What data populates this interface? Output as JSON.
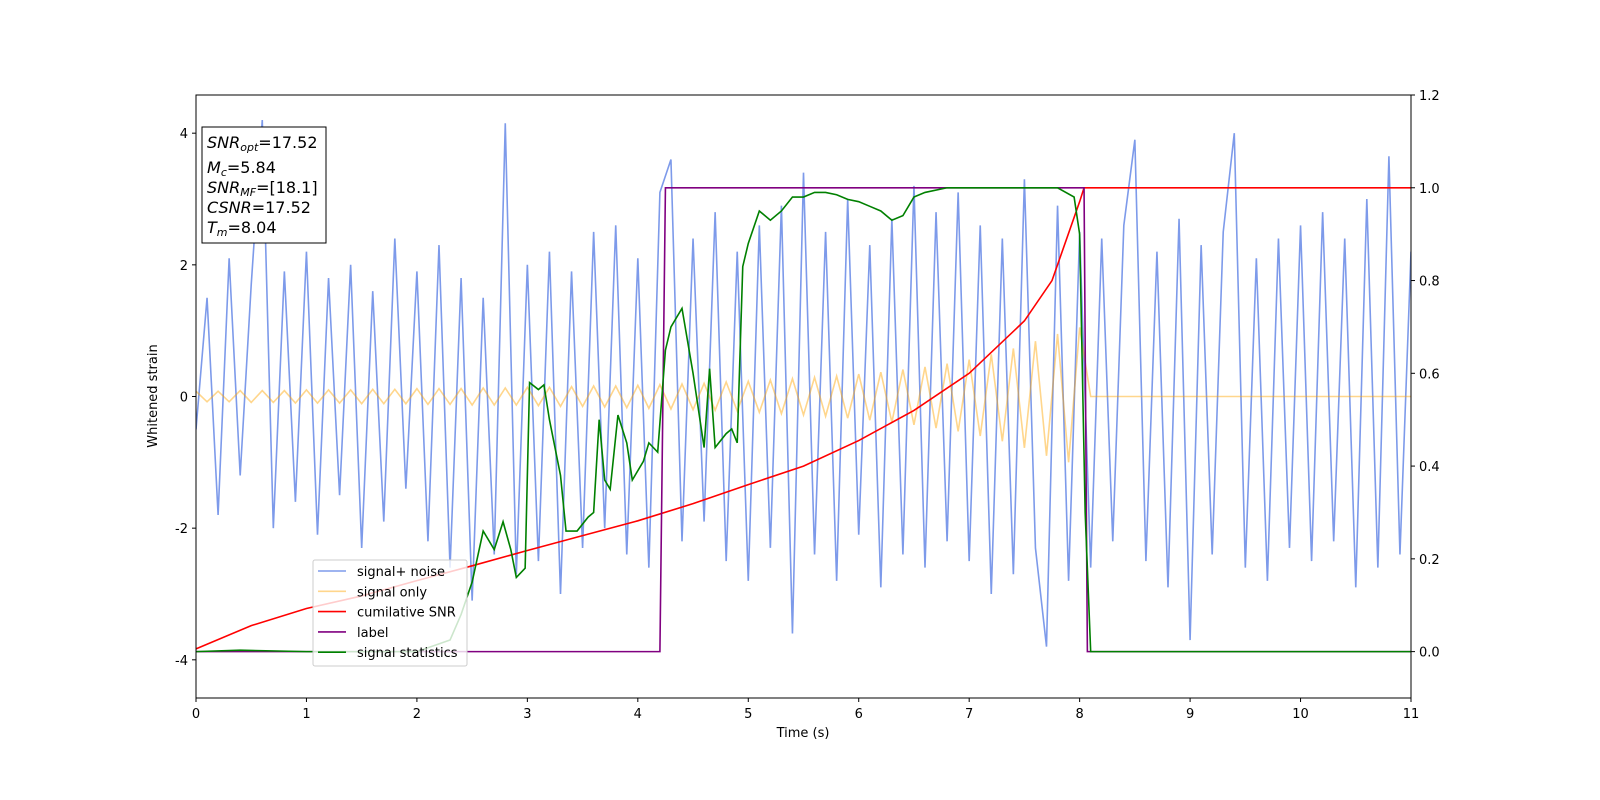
{
  "chart_data": {
    "type": "line",
    "xlabel": "Time (s)",
    "ylabel": "Whitened strain",
    "xlim": [
      0,
      11
    ],
    "ylim": [
      -4.58,
      4.58
    ],
    "y2lim": [
      -0.1,
      1.2
    ],
    "xticks": [
      0,
      1,
      2,
      3,
      4,
      5,
      6,
      7,
      8,
      9,
      10,
      11
    ],
    "yticks": [
      -4,
      -2,
      0,
      2,
      4
    ],
    "y2ticks": [
      {
        "value": 0,
        "label": "0.0"
      },
      0.2,
      0.4,
      0.6,
      0.8,
      {
        "value": 1,
        "label": "1.0"
      },
      1.2
    ],
    "x": [
      0,
      0.1,
      0.2,
      0.3,
      0.4,
      0.5,
      0.6,
      0.7,
      0.8,
      0.9,
      1,
      1.1,
      1.2,
      1.3,
      1.4,
      1.5,
      1.6,
      1.7,
      1.8,
      1.9,
      2,
      2.1,
      2.2,
      2.3,
      2.4,
      2.5,
      2.6,
      2.7,
      2.8,
      2.9,
      3,
      3.1,
      3.2,
      3.3,
      3.4,
      3.5,
      3.6,
      3.7,
      3.8,
      3.9,
      4,
      4.1,
      4.2,
      4.3,
      4.4,
      4.5,
      4.6,
      4.7,
      4.8,
      4.9,
      5,
      5.1,
      5.2,
      5.3,
      5.4,
      5.5,
      5.6,
      5.7,
      5.8,
      5.9,
      6,
      6.1,
      6.2,
      6.3,
      6.4,
      6.5,
      6.6,
      6.7,
      6.8,
      6.9,
      7,
      7.1,
      7.2,
      7.3,
      7.4,
      7.5,
      7.6,
      7.7,
      7.8,
      7.9,
      8,
      8.1,
      8.2,
      8.3,
      8.4,
      8.5,
      8.6,
      8.7,
      8.8,
      8.9,
      9,
      9.1,
      9.2,
      9.3,
      9.4,
      9.5,
      9.6,
      9.7,
      9.8,
      9.9,
      10,
      10.1,
      10.2,
      10.3,
      10.4,
      10.5,
      10.6,
      10.7,
      10.8,
      10.9,
      11
    ],
    "series": [
      {
        "name": "signal+ noise",
        "color": "#6f8fe8",
        "opacity": 0.9,
        "values": [
          -0.5,
          1.5,
          -1.8,
          2.1,
          -1.2,
          1.7,
          4.2,
          -2.0,
          1.9,
          -1.6,
          2.2,
          -2.1,
          1.8,
          -1.5,
          2.0,
          -2.3,
          1.6,
          -1.9,
          2.4,
          -1.4,
          1.9,
          -2.2,
          2.3,
          -2.6,
          1.8,
          -3.1,
          1.5,
          -2.4,
          4.15,
          -2.7,
          2.0,
          -2.5,
          2.2,
          -3.0,
          1.9,
          -2.3,
          2.5,
          -2.0,
          2.6,
          -2.4,
          2.1,
          -2.6,
          3.1,
          3.6,
          -2.2,
          2.4,
          -1.9,
          2.8,
          -2.5,
          2.2,
          -2.8,
          2.6,
          -2.3,
          2.9,
          -3.6,
          3.4,
          -2.4,
          2.5,
          -2.8,
          3.0,
          -2.1,
          2.3,
          -2.9,
          2.7,
          -2.4,
          3.2,
          -2.6,
          2.8,
          -2.2,
          3.1,
          -2.5,
          2.6,
          -3.0,
          2.4,
          -2.7,
          3.3,
          -2.3,
          -3.8,
          2.9,
          -2.8,
          2.5,
          -2.6,
          2.4,
          -2.2,
          2.6,
          3.9,
          -2.5,
          2.2,
          -2.9,
          2.7,
          -3.7,
          2.3,
          -2.4,
          2.5,
          4.0,
          -2.6,
          2.1,
          -2.8,
          2.4,
          -2.3,
          2.6,
          -2.5,
          2.8,
          -2.2,
          2.4,
          -2.9,
          3.0,
          -2.6,
          3.65,
          -2.4,
          2.2
        ]
      },
      {
        "name": "signal only",
        "color": "orange",
        "opacity": 0.45,
        "values": [
          0.08,
          -0.08,
          0.08,
          -0.08,
          0.09,
          -0.09,
          0.09,
          -0.09,
          0.09,
          -0.1,
          0.1,
          -0.1,
          0.1,
          -0.1,
          0.1,
          -0.11,
          0.11,
          -0.11,
          0.11,
          -0.11,
          0.12,
          -0.12,
          0.12,
          -0.12,
          0.12,
          -0.13,
          0.13,
          -0.13,
          0.13,
          -0.13,
          0.14,
          -0.14,
          0.14,
          -0.15,
          0.15,
          -0.15,
          0.16,
          -0.16,
          0.16,
          -0.17,
          0.17,
          -0.18,
          0.18,
          -0.19,
          0.19,
          -0.2,
          0.2,
          -0.21,
          0.22,
          -0.22,
          0.23,
          -0.24,
          0.25,
          -0.26,
          0.27,
          -0.28,
          0.29,
          -0.3,
          0.31,
          -0.33,
          0.34,
          -0.36,
          0.37,
          -0.39,
          0.41,
          -0.43,
          0.45,
          -0.48,
          0.5,
          -0.53,
          0.56,
          -0.6,
          0.64,
          -0.68,
          0.73,
          -0.78,
          0.84,
          -0.9,
          0.95,
          -1.0,
          1.05,
          0,
          0,
          0,
          0,
          0,
          0,
          0,
          0,
          0,
          0,
          0,
          0,
          0,
          0,
          0,
          0,
          0,
          0,
          0,
          0,
          0,
          0,
          0,
          0,
          0,
          0,
          0,
          0,
          0,
          0
        ]
      },
      {
        "name": "cumilative SNR",
        "color": "red",
        "axis": "y2",
        "x": [
          0,
          0.5,
          1,
          1.5,
          2,
          2.5,
          3,
          3.5,
          4,
          4.5,
          5,
          5.5,
          6,
          6.5,
          7,
          7.5,
          7.75,
          8,
          8.04,
          11
        ],
        "values": [
          0.006,
          0.056,
          0.093,
          0.12,
          0.153,
          0.185,
          0.218,
          0.25,
          0.282,
          0.319,
          0.36,
          0.4,
          0.455,
          0.52,
          0.6,
          0.713,
          0.8,
          0.97,
          1.0,
          1.0
        ]
      },
      {
        "name": "label",
        "color": "purple",
        "axis": "y2",
        "x": [
          0,
          4.2,
          4.25,
          8.04,
          8.07,
          11
        ],
        "values": [
          0,
          0,
          1,
          1,
          0,
          0
        ]
      },
      {
        "name": "signal statistics",
        "color": "green",
        "axis": "y2",
        "x": [
          0,
          0.4,
          1,
          2,
          2.3,
          2.4,
          2.5,
          2.6,
          2.7,
          2.78,
          2.85,
          2.9,
          2.98,
          3.02,
          3.1,
          3.15,
          3.2,
          3.3,
          3.35,
          3.45,
          3.55,
          3.6,
          3.65,
          3.7,
          3.75,
          3.82,
          3.9,
          3.95,
          4.05,
          4.1,
          4.18,
          4.25,
          4.3,
          4.4,
          4.5,
          4.6,
          4.65,
          4.7,
          4.8,
          4.85,
          4.9,
          4.95,
          5.0,
          5.1,
          5.2,
          5.3,
          5.4,
          5.5,
          5.6,
          5.7,
          5.8,
          5.9,
          6.0,
          6.1,
          6.2,
          6.3,
          6.4,
          6.5,
          6.6,
          6.8,
          7.0,
          7.5,
          7.8,
          7.95,
          8.0,
          8.05,
          8.1,
          11
        ],
        "values": [
          0,
          0.003,
          0,
          0,
          0.025,
          0.08,
          0.15,
          0.26,
          0.22,
          0.28,
          0.22,
          0.16,
          0.18,
          0.58,
          0.565,
          0.575,
          0.5,
          0.38,
          0.26,
          0.26,
          0.29,
          0.3,
          0.5,
          0.37,
          0.35,
          0.51,
          0.45,
          0.37,
          0.41,
          0.45,
          0.43,
          0.65,
          0.7,
          0.74,
          0.6,
          0.44,
          0.61,
          0.44,
          0.47,
          0.48,
          0.45,
          0.83,
          0.88,
          0.95,
          0.93,
          0.95,
          0.98,
          0.98,
          0.99,
          0.99,
          0.985,
          0.975,
          0.97,
          0.96,
          0.95,
          0.93,
          0.94,
          0.98,
          0.99,
          1.0,
          1.0,
          1.0,
          1.0,
          0.98,
          0.9,
          0.3,
          0.0,
          0
        ]
      }
    ],
    "annotation": [
      {
        "main": "SNR",
        "sub": "opt",
        "rest": "=17.52"
      },
      {
        "main": "M",
        "sub": "c",
        "rest": "=5.84"
      },
      {
        "main": "SNR",
        "sub": "MF",
        "rest": "=[18.1]"
      },
      {
        "main": "CSNR",
        "rest": "=17.52"
      },
      {
        "main": "T",
        "sub": "m",
        "rest": "=8.04"
      }
    ]
  }
}
